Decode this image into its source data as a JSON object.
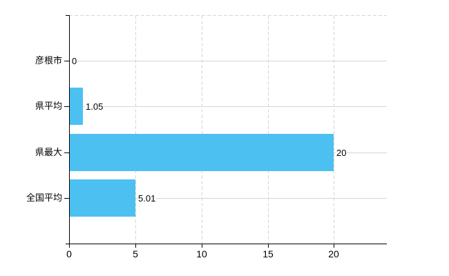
{
  "chart_data": {
    "type": "bar",
    "orientation": "horizontal",
    "title": "",
    "categories": [
      "彦根市",
      "県平均",
      "県最大",
      "全国平均"
    ],
    "values": [
      0,
      1.05,
      20,
      5.01
    ],
    "value_labels": [
      "0",
      "1.05",
      "20",
      "5.01"
    ],
    "x_tick_values": [
      0,
      5,
      10,
      15,
      20
    ],
    "x_tick_labels": [
      "0",
      "5",
      "10",
      "15",
      "20"
    ],
    "xlim": [
      0,
      24
    ],
    "grid": true,
    "legend_position": "none",
    "colors": {
      "bar": "#4CC1F1",
      "gridline": "#d4d7d0",
      "axis": "#000000",
      "text": "#000000",
      "background": "#ffffff"
    }
  }
}
